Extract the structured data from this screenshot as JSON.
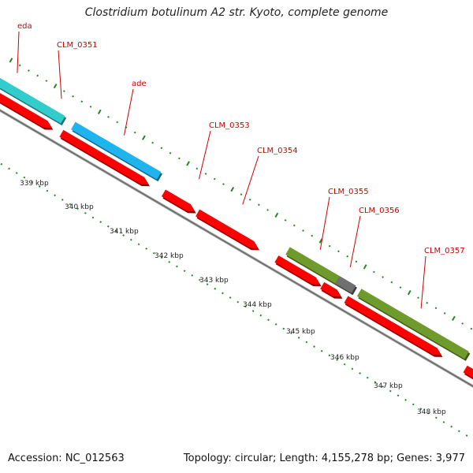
{
  "title": "Clostridium botulinum A2 str. Kyoto, complete genome",
  "footer": {
    "accession": "Accession: NC_012563",
    "summary": "Topology: circular; Length: 4,155,278 bp; Genes: 3,977"
  },
  "colors": {
    "cds_red": "#ff0000",
    "cyan": "#33cccc",
    "sky_blue": "#1eb4ee",
    "olive": "#6f9a2c",
    "gray": "#707070",
    "orange": "#ff9900",
    "label_red": "#cc0000",
    "backbone": "#8a8a8a",
    "tick_green": "#1f8a1f"
  },
  "tick_labels": [
    "339 kbp",
    "340 kbp",
    "341 kbp",
    "342 kbp",
    "343 kbp",
    "344 kbp",
    "345 kbp",
    "346 kbp",
    "347 kbp",
    "348 kbp"
  ],
  "gene_labels": [
    "eda",
    "CLM_0351",
    "ade",
    "CLM_0353",
    "CLM_0354",
    "CLM_0355",
    "CLM_0356",
    "CLM_0357"
  ],
  "features": [
    {
      "lane": "outer",
      "color": "cyan",
      "label": "eda"
    },
    {
      "lane": "inner",
      "color": "cds_red"
    },
    {
      "lane": "outer",
      "color": "sky_blue",
      "label": "ade"
    },
    {
      "lane": "inner",
      "color": "cds_red"
    },
    {
      "lane": "inner",
      "color": "cds_red",
      "label": "CLM_0353"
    },
    {
      "lane": "inner",
      "color": "cds_red",
      "label": "CLM_0354"
    },
    {
      "lane": "outer",
      "color": "olive",
      "label": "CLM_0355"
    },
    {
      "lane": "outer",
      "color": "gray"
    },
    {
      "lane": "inner",
      "color": "cds_red"
    },
    {
      "lane": "inner",
      "color": "cds_red"
    },
    {
      "lane": "outer",
      "color": "olive",
      "label": "CLM_0357"
    },
    {
      "lane": "inner",
      "color": "cds_red"
    },
    {
      "lane": "outer",
      "color": "orange"
    },
    {
      "lane": "inner",
      "color": "cds_red"
    }
  ]
}
